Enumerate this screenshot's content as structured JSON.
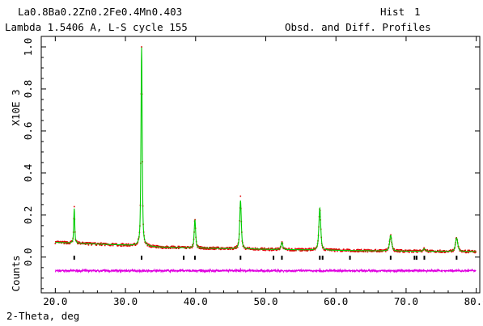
{
  "header": {
    "title_line1": "La0.8Ba0.2Zn0.2Fe0.4Mn0.403",
    "title_line2": "Lambda 1.5406 A, L-S cycle  155",
    "hist_label": "Hist",
    "hist_number": "1",
    "profiles_label": "Obsd. and Diff. Profiles"
  },
  "chart_data": {
    "type": "line",
    "title": "La0.8Ba0.2Zn0.2Fe0.4Mn0.403",
    "xlabel": "2-Theta, deg",
    "ylabel": "Counts",
    "y_multiplier_label": "X10E  3",
    "xlim": [
      18.0,
      80.5
    ],
    "ylim": [
      -0.17,
      1.05
    ],
    "x_ticks": [
      "20.0",
      "30.0",
      "40.0",
      "50.0",
      "60.0",
      "70.0",
      "80.0"
    ],
    "y_ticks": [
      "0.0",
      "0.2",
      "0.4",
      "0.6",
      "0.8",
      "1.0"
    ],
    "x_range": [
      20.0,
      80.0
    ],
    "background_points": [
      [
        20.0,
        0.07
      ],
      [
        25.0,
        0.063
      ],
      [
        30.0,
        0.057
      ],
      [
        35.0,
        0.047
      ],
      [
        40.0,
        0.043
      ],
      [
        50.0,
        0.037
      ],
      [
        60.0,
        0.032
      ],
      [
        70.0,
        0.028
      ],
      [
        80.0,
        0.026
      ]
    ],
    "peaks": [
      {
        "x": 22.7,
        "height": 0.165,
        "obs_max": 0.24
      },
      {
        "x": 32.3,
        "height": 0.945,
        "obs_max": 1.0
      },
      {
        "x": 39.9,
        "height": 0.135,
        "obs_max": 0.18
      },
      {
        "x": 46.4,
        "height": 0.23,
        "obs_max": 0.29
      },
      {
        "x": 52.3,
        "height": 0.035,
        "obs_max": 0.075
      },
      {
        "x": 57.7,
        "height": 0.2,
        "obs_max": 0.25
      },
      {
        "x": 67.8,
        "height": 0.075,
        "obs_max": 0.105
      },
      {
        "x": 72.6,
        "height": 0.012,
        "obs_max": 0.04
      },
      {
        "x": 77.2,
        "height": 0.065,
        "obs_max": 0.095
      }
    ],
    "reflection_ticks": [
      22.7,
      32.3,
      38.3,
      39.9,
      46.4,
      51.1,
      52.3,
      57.7,
      58.1,
      62.0,
      67.8,
      71.2,
      71.5,
      72.6,
      77.2
    ],
    "difference_offset": -0.065,
    "series": [
      {
        "name": "Obsd.",
        "role": "observed",
        "color": "#e00000"
      },
      {
        "name": "Calc.",
        "role": "calculated",
        "color": "#00cc00"
      },
      {
        "name": "Diff.",
        "role": "difference",
        "color": "#e000e0"
      }
    ],
    "colors": {
      "observed": "#e00000",
      "calculated": "#00cc00",
      "difference": "#e000e0",
      "reflection_ticks": "#000000",
      "frame": "#000000"
    }
  }
}
